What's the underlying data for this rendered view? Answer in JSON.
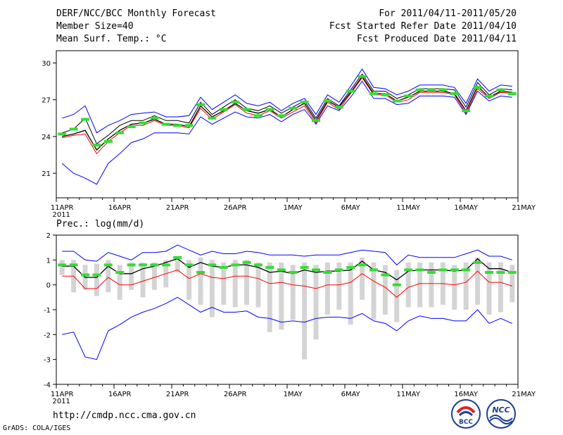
{
  "header": {
    "title": "DERF/NCC/BCC Monthly Forecast",
    "member_size": "Member Size=40",
    "variable": "Mean Surf. Temp.: °C",
    "period": "For 2011/04/11-2011/05/20",
    "start_ref": "Fcst Started Refer Date 2011/04/10",
    "produced": "Fcst Produced Date 2011/04/11"
  },
  "precip_label": "Prec.: log(mm/d)",
  "footer": {
    "url": "http://cmdp.ncc.cma.gov.cn",
    "credit": "GrADS: COLA/IGES",
    "logo1_text": "BCC",
    "logo2_text": "NCC"
  },
  "colors": {
    "ens_mean": "#000000",
    "ens_max": "#0000ff",
    "ens_min": "#ff0000",
    "spread": "#d4d4d4",
    "clim": "#33dd33"
  },
  "chart_data": [
    {
      "type": "line",
      "title": "Mean Surf. Temp.: °C",
      "x_tick_labels": [
        "11APR",
        "16APR",
        "21APR",
        "26APR",
        "1MAY",
        "6MAY",
        "11MAY",
        "16MAY",
        "21MAY"
      ],
      "x_year_label": "2011",
      "xlim": [
        0,
        40
      ],
      "ylim": [
        19,
        31
      ],
      "y_ticks": [
        21,
        24,
        27,
        30
      ],
      "series": [
        {
          "name": "ens_max",
          "color": "#0000ff",
          "values": [
            25.5,
            25.8,
            26.5,
            24.3,
            24.9,
            25.3,
            25.8,
            25.9,
            26.0,
            25.6,
            25.6,
            25.7,
            27.2,
            26.2,
            26.8,
            27.4,
            26.7,
            26.5,
            26.8,
            26.1,
            26.7,
            27.1,
            25.8,
            27.4,
            26.8,
            28.1,
            29.5,
            28.0,
            27.9,
            27.4,
            27.7,
            28.2,
            28.2,
            28.2,
            28.0,
            26.7,
            28.7,
            27.7,
            28.2,
            28.1
          ]
        },
        {
          "name": "ens_top_spread",
          "color": "#000000",
          "values": [
            24.3,
            24.6,
            25.5,
            23.4,
            24.1,
            24.9,
            25.3,
            25.3,
            25.7,
            25.3,
            25.3,
            25.1,
            26.8,
            25.8,
            26.4,
            27.0,
            26.3,
            26.1,
            26.5,
            25.9,
            26.4,
            26.9,
            25.5,
            27.1,
            26.5,
            27.8,
            29.1,
            27.7,
            27.7,
            27.1,
            27.4,
            27.9,
            27.9,
            27.9,
            27.8,
            26.4,
            28.4,
            27.4,
            27.9,
            27.8
          ]
        },
        {
          "name": "ens_mean",
          "color": "#000000",
          "values": [
            24.0,
            24.2,
            24.5,
            22.9,
            23.8,
            24.5,
            25.0,
            25.1,
            25.4,
            25.0,
            25.0,
            24.8,
            26.5,
            25.6,
            26.1,
            26.7,
            26.1,
            25.9,
            26.2,
            25.6,
            26.2,
            26.7,
            25.3,
            26.9,
            26.4,
            27.6,
            28.9,
            27.5,
            27.5,
            26.9,
            27.2,
            27.7,
            27.7,
            27.7,
            27.5,
            26.1,
            28.1,
            27.2,
            27.7,
            27.6
          ]
        },
        {
          "name": "ens_min",
          "color": "#ff0000",
          "values": [
            23.9,
            24.1,
            24.2,
            22.6,
            23.6,
            24.3,
            24.9,
            24.9,
            25.3,
            24.9,
            24.9,
            24.7,
            26.3,
            25.4,
            26.0,
            26.6,
            25.9,
            25.7,
            26.1,
            25.5,
            26.0,
            26.5,
            25.1,
            26.8,
            26.2,
            27.5,
            28.8,
            27.4,
            27.4,
            26.8,
            27.0,
            27.6,
            27.6,
            27.6,
            27.4,
            25.9,
            27.9,
            27.1,
            27.6,
            27.5
          ]
        },
        {
          "name": "ens_low",
          "color": "#0000ff",
          "values": [
            21.8,
            21.0,
            20.6,
            20.1,
            21.8,
            22.6,
            23.5,
            23.8,
            24.3,
            24.3,
            24.3,
            24.2,
            25.6,
            25.0,
            25.5,
            26.0,
            25.6,
            25.5,
            25.8,
            25.2,
            25.8,
            26.2,
            25.0,
            26.5,
            26.1,
            27.2,
            28.5,
            27.1,
            27.1,
            26.6,
            26.7,
            27.3,
            27.3,
            27.3,
            27.2,
            25.8,
            27.7,
            26.9,
            27.3,
            27.2
          ]
        },
        {
          "name": "climatology",
          "color": "#33dd33",
          "values": [
            24.2,
            24.6,
            25.4,
            23.3,
            23.6,
            24.3,
            24.8,
            25.1,
            25.5,
            25.0,
            24.9,
            24.9,
            26.6,
            25.5,
            26.2,
            26.8,
            26.2,
            25.7,
            26.2,
            25.7,
            26.3,
            26.8,
            25.3,
            26.9,
            26.4,
            27.7,
            28.9,
            27.5,
            27.4,
            26.9,
            27.3,
            27.8,
            27.8,
            27.8,
            27.5,
            26.1,
            28.0,
            27.3,
            27.8,
            27.5
          ]
        }
      ]
    },
    {
      "type": "line",
      "title": "Prec.: log(mm/d)",
      "x_tick_labels": [
        "11APR",
        "16APR",
        "21APR",
        "26APR",
        "1MAY",
        "6MAY",
        "11MAY",
        "16MAY",
        "21MAY"
      ],
      "x_year_label": "2011",
      "xlim": [
        0,
        40
      ],
      "ylim": [
        -4,
        2
      ],
      "y_ticks": [
        -4,
        -3,
        -2,
        -1,
        0,
        1,
        2
      ],
      "series": [
        {
          "name": "ens_max",
          "color": "#0000ff",
          "values": [
            1.35,
            1.35,
            1.0,
            0.95,
            1.3,
            1.15,
            1.0,
            1.3,
            1.3,
            1.35,
            1.6,
            1.4,
            1.2,
            1.35,
            1.25,
            1.25,
            1.35,
            1.3,
            1.2,
            1.2,
            1.2,
            1.15,
            1.2,
            1.2,
            1.2,
            1.3,
            1.4,
            1.35,
            1.3,
            0.8,
            1.2,
            1.1,
            1.1,
            1.1,
            1.1,
            1.25,
            1.4,
            1.15,
            1.15,
            1.0
          ]
        },
        {
          "name": "ens_mean",
          "color": "#000000",
          "values": [
            0.75,
            0.75,
            0.3,
            0.3,
            0.75,
            0.45,
            0.45,
            0.65,
            0.75,
            0.9,
            1.05,
            0.7,
            0.9,
            0.75,
            0.7,
            0.8,
            0.8,
            0.7,
            0.5,
            0.55,
            0.45,
            0.6,
            0.5,
            0.55,
            0.55,
            0.6,
            0.95,
            0.6,
            0.5,
            0.2,
            0.55,
            0.6,
            0.6,
            0.6,
            0.55,
            0.6,
            1.05,
            0.65,
            0.65,
            0.5
          ]
        },
        {
          "name": "ens_min",
          "color": "#ff0000",
          "values": [
            0.35,
            0.35,
            -0.15,
            -0.15,
            0.3,
            0.0,
            0.0,
            0.15,
            0.3,
            0.45,
            0.6,
            0.25,
            0.45,
            0.3,
            0.25,
            0.35,
            0.35,
            0.25,
            0.05,
            0.1,
            0.0,
            -0.05,
            -0.15,
            0.0,
            0.0,
            0.1,
            0.45,
            0.15,
            -0.1,
            -0.5,
            -0.1,
            0.05,
            0.05,
            0.05,
            0.0,
            0.1,
            0.55,
            0.1,
            0.1,
            -0.05
          ]
        },
        {
          "name": "ens_low",
          "color": "#0000ff",
          "values": [
            -2.0,
            -1.9,
            -2.9,
            -3.0,
            -1.85,
            -1.6,
            -1.3,
            -1.1,
            -0.95,
            -0.75,
            -0.5,
            -0.8,
            -1.1,
            -0.9,
            -1.1,
            -1.1,
            -1.05,
            -1.3,
            -1.35,
            -1.5,
            -1.45,
            -1.5,
            -1.35,
            -1.3,
            -1.3,
            -1.35,
            -1.15,
            -1.45,
            -1.55,
            -1.85,
            -1.45,
            -1.25,
            -1.35,
            -1.35,
            -1.45,
            -1.45,
            -1.0,
            -1.55,
            -1.35,
            -1.55
          ]
        },
        {
          "name": "spread_top",
          "color": "#d4d4d4",
          "values": [
            1.0,
            1.0,
            0.8,
            0.85,
            1.0,
            0.8,
            0.9,
            0.9,
            0.9,
            1.0,
            1.0,
            1.0,
            1.1,
            1.0,
            0.9,
            1.0,
            1.0,
            0.9,
            0.9,
            0.9,
            0.8,
            0.9,
            0.8,
            0.9,
            0.9,
            0.9,
            1.1,
            0.9,
            0.8,
            0.6,
            0.9,
            0.9,
            0.9,
            0.9,
            0.8,
            0.9,
            1.1,
            0.9,
            0.9,
            0.8
          ]
        },
        {
          "name": "spread_bottom",
          "color": "#d4d4d4",
          "values": [
            0.4,
            -0.3,
            -0.2,
            -0.45,
            -0.3,
            -0.6,
            -0.2,
            -0.5,
            -0.2,
            -0.1,
            0.5,
            -0.6,
            -0.8,
            -1.3,
            -0.8,
            -0.9,
            -0.8,
            -0.9,
            -1.9,
            -1.8,
            -1.4,
            -3.0,
            -2.2,
            -1.2,
            -1.0,
            -1.6,
            -0.6,
            -1.4,
            -1.2,
            -1.5,
            -0.9,
            -0.9,
            -0.9,
            -0.8,
            -1.0,
            -1.0,
            -0.8,
            -1.2,
            -1.1,
            -0.7
          ]
        },
        {
          "name": "climatology",
          "color": "#33dd33",
          "values": [
            0.8,
            0.8,
            0.4,
            0.4,
            0.8,
            0.5,
            0.8,
            0.8,
            0.8,
            0.8,
            1.1,
            0.8,
            0.5,
            0.8,
            0.7,
            0.8,
            0.9,
            0.8,
            0.7,
            0.6,
            0.5,
            0.7,
            0.6,
            0.5,
            0.6,
            0.7,
            0.8,
            0.6,
            0.4,
            0.0,
            0.6,
            0.6,
            0.5,
            0.6,
            0.6,
            0.6,
            0.9,
            0.5,
            0.5,
            0.5
          ]
        }
      ]
    }
  ]
}
